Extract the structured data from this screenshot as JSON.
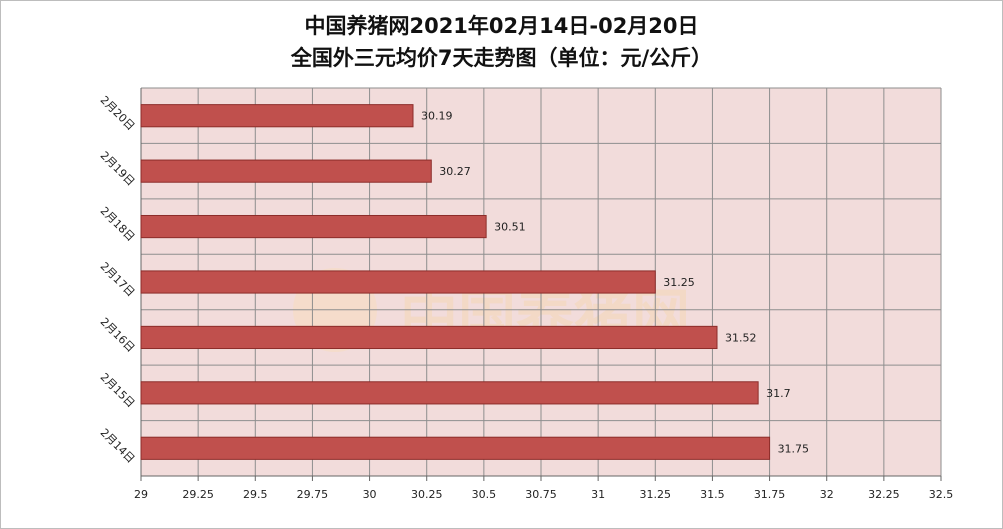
{
  "title_line1": "中国养猪网2021年02月14日-02月20日",
  "title_line2": "全国外三元均价7天走势图（单位：元/公斤）",
  "watermark": "中国养猪网",
  "colors": {
    "bar": "#c0504d",
    "bar_edge": "#8c2d2a",
    "plot_bg": "#f2dcdb",
    "grid": "#8e8e8e"
  },
  "chart_data": {
    "type": "bar",
    "orientation": "horizontal",
    "categories": [
      "2月20日",
      "2月19日",
      "2月18日",
      "2月17日",
      "2月16日",
      "2月15日",
      "2月14日"
    ],
    "values": [
      30.19,
      30.27,
      30.51,
      31.25,
      31.52,
      31.7,
      31.75
    ],
    "value_labels": [
      "30.19",
      "30.27",
      "30.51",
      "31.25",
      "31.52",
      "31.7",
      "31.75"
    ],
    "xlim": [
      29,
      32.5
    ],
    "xticks": [
      "29",
      "29.25",
      "29.5",
      "29.75",
      "30",
      "30.25",
      "30.5",
      "30.75",
      "31",
      "31.25",
      "31.5",
      "31.75",
      "32",
      "32.25",
      "32.5"
    ],
    "grid": true,
    "xlabel": "",
    "ylabel": ""
  }
}
